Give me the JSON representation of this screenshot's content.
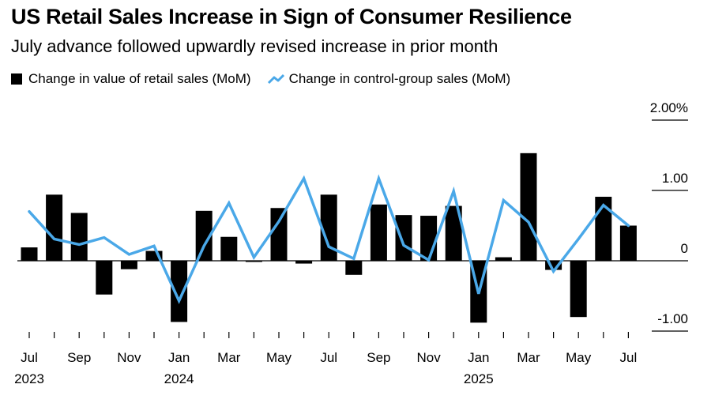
{
  "chart_data": {
    "type": "bar",
    "title": "US Retail Sales Increase in Sign of Consumer Resilience",
    "subtitle": "July advance followed upwardly revised increase in prior month",
    "xlabel": "",
    "ylabel": "",
    "ylim": [
      -1.0,
      2.0
    ],
    "y_ticks": [
      {
        "value": 2.0,
        "label": "2.00%"
      },
      {
        "value": 1.0,
        "label": "1.00"
      },
      {
        "value": 0.0,
        "label": "0"
      },
      {
        "value": -1.0,
        "label": "-1.00"
      }
    ],
    "categories": [
      "Jul 2023",
      "Aug 2023",
      "Sep 2023",
      "Oct 2023",
      "Nov 2023",
      "Dec 2023",
      "Jan 2024",
      "Feb 2024",
      "Mar 2024",
      "Apr 2024",
      "May 2024",
      "Jun 2024",
      "Jul 2024",
      "Aug 2024",
      "Sep 2024",
      "Oct 2024",
      "Nov 2024",
      "Dec 2024",
      "Jan 2025",
      "Feb 2025",
      "Mar 2025",
      "Apr 2025",
      "May 2025",
      "Jun 2025",
      "Jul 2025"
    ],
    "x_tick_labels": [
      {
        "index": 0,
        "label": "Jul",
        "year": "2023"
      },
      {
        "index": 2,
        "label": "Sep",
        "year": ""
      },
      {
        "index": 4,
        "label": "Nov",
        "year": ""
      },
      {
        "index": 6,
        "label": "Jan",
        "year": "2024"
      },
      {
        "index": 8,
        "label": "Mar",
        "year": ""
      },
      {
        "index": 10,
        "label": "May",
        "year": ""
      },
      {
        "index": 12,
        "label": "Jul",
        "year": ""
      },
      {
        "index": 14,
        "label": "Sep",
        "year": ""
      },
      {
        "index": 16,
        "label": "Nov",
        "year": ""
      },
      {
        "index": 18,
        "label": "Jan",
        "year": "2025"
      },
      {
        "index": 20,
        "label": "Mar",
        "year": ""
      },
      {
        "index": 22,
        "label": "May",
        "year": ""
      },
      {
        "index": 24,
        "label": "Jul",
        "year": ""
      }
    ],
    "series": [
      {
        "name": "Change in value of retail sales (MoM)",
        "kind": "bar",
        "color": "#000000",
        "values": [
          0.19,
          0.94,
          0.68,
          -0.48,
          -0.12,
          0.14,
          -0.87,
          0.71,
          0.34,
          -0.01,
          0.75,
          -0.04,
          0.94,
          -0.2,
          0.8,
          0.65,
          0.64,
          0.78,
          -0.88,
          0.05,
          1.53,
          -0.13,
          -0.8,
          0.91,
          0.5
        ]
      },
      {
        "name": "Change in control-group sales (MoM)",
        "kind": "line",
        "color": "#4aa8e8",
        "values": [
          0.7,
          0.31,
          0.23,
          0.33,
          0.09,
          0.21,
          -0.57,
          0.21,
          0.82,
          0.05,
          0.56,
          1.17,
          0.2,
          0.03,
          1.17,
          0.22,
          0.01,
          0.99,
          -0.47,
          0.86,
          0.55,
          -0.15,
          0.31,
          0.79,
          0.5
        ]
      }
    ],
    "legend": "top-left"
  }
}
